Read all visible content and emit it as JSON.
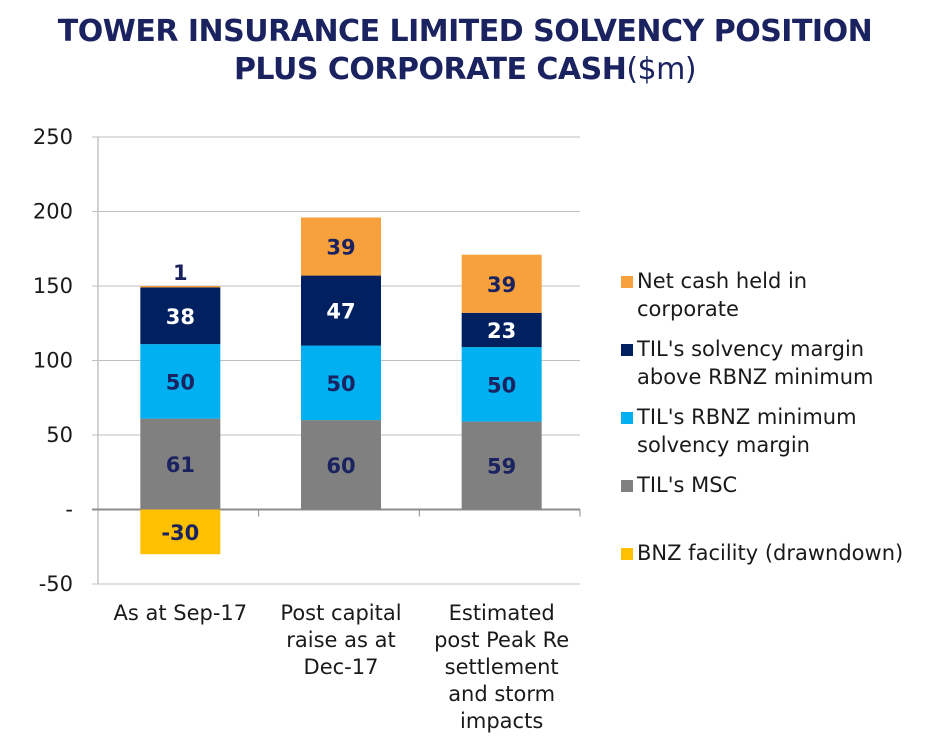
{
  "chart_data": {
    "type": "bar",
    "stacked": true,
    "title": "TOWER INSURANCE LIMITED SOLVENCY POSITION PLUS CORPORATE CASH",
    "title_line1": "TOWER INSURANCE LIMITED SOLVENCY POSITION",
    "title_line2": "PLUS CORPORATE CASH",
    "title_unit": "($m)",
    "ylim": [
      -50,
      250
    ],
    "yticks": [
      250,
      200,
      150,
      100,
      50,
      0,
      -50
    ],
    "ytick_labels": [
      "250",
      "200",
      "150",
      "100",
      "50",
      "-",
      "-50"
    ],
    "grid": true,
    "legend_position": "right",
    "categories": [
      [
        "As at Sep-17"
      ],
      [
        "Post capital",
        "raise as at",
        "Dec-17"
      ],
      [
        "Estimated",
        "post Peak Re",
        "settlement",
        "and storm",
        "impacts"
      ]
    ],
    "series": [
      {
        "name": "TIL's MSC",
        "legend": [
          "TIL's MSC"
        ],
        "color": "#808080",
        "label_color": "#1a2360",
        "values": [
          61,
          60,
          59
        ]
      },
      {
        "name": "TIL's RBNZ minimum solvency margin",
        "legend": [
          "TIL's RBNZ minimum",
          "solvency margin"
        ],
        "color": "#00b0f0",
        "label_color": "#1a2360",
        "values": [
          50,
          50,
          50
        ]
      },
      {
        "name": "TIL's solvency margin above RBNZ minimum",
        "legend": [
          "TIL's solvency margin",
          "above RBNZ minimum"
        ],
        "color": "#002060",
        "label_color": "#ffffff",
        "values": [
          38,
          47,
          23
        ]
      },
      {
        "name": "Net cash held in corporate",
        "legend": [
          "Net cash held in",
          "corporate"
        ],
        "color": "#f7a13c",
        "label_color": "#1a2360",
        "values": [
          1,
          39,
          39
        ]
      },
      {
        "name": "BNZ facility (drawndown)",
        "legend": [
          "BNZ facility (drawndown)"
        ],
        "color": "#ffc000",
        "label_color": "#1a2360",
        "values": [
          -30,
          0,
          0
        ]
      }
    ],
    "legend_order": [
      3,
      2,
      1,
      0,
      4
    ]
  }
}
